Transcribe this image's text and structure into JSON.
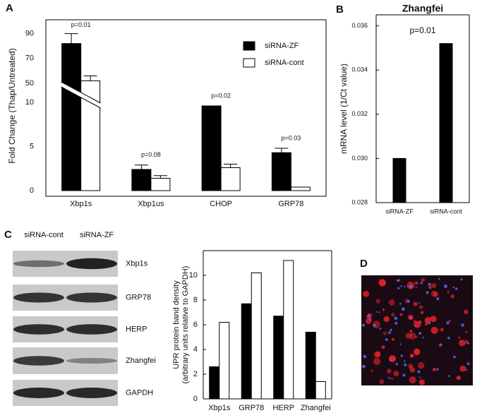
{
  "panel_labels": [
    "A",
    "B",
    "C",
    "D"
  ],
  "blot": {
    "lanes": [
      "siRNA-cont",
      "siRNA-ZF"
    ],
    "bands": [
      "Xbp1s",
      "GRP78",
      "HERP",
      "Zhangfei",
      "GAPDH"
    ]
  },
  "chart_data": [
    {
      "type": "bar",
      "ylabel": "Fold Change (Thap/Untreated)",
      "categories": [
        "Xbp1s",
        "Xbp1us",
        "CHOP",
        "GRP78"
      ],
      "series": [
        {
          "name": "siRNA-ZF",
          "color": "#000000",
          "values": [
            82,
            2.4,
            9.6,
            4.3
          ],
          "errors": [
            8,
            0.5,
            0.6,
            0.5
          ]
        },
        {
          "name": "siRNA-cont",
          "color": "#ffffff",
          "values": [
            52,
            1.4,
            2.6,
            0.4
          ],
          "errors": [
            4,
            0.3,
            0.4,
            0
          ]
        }
      ],
      "annotations": [
        "p=0.01",
        "p=0.08",
        "p=0.02",
        "p=0.03"
      ],
      "ylim": [
        0,
        100
      ],
      "axis_break": [
        10,
        50
      ],
      "yticks": [
        0,
        5,
        10,
        50,
        70,
        90
      ],
      "legend": "top-right"
    },
    {
      "type": "bar",
      "title": "Zhangfei",
      "ylabel": "mRNA level (1/Ct value)",
      "categories": [
        "siRNA-ZF",
        "siRNA-cont"
      ],
      "series": [
        {
          "color": "#000000",
          "values": [
            0.03,
            0.0352
          ]
        }
      ],
      "annotations": [
        "p=0.01"
      ],
      "ylim": [
        0.028,
        0.0365
      ],
      "yticks": [
        0.028,
        {
          "value": 0.03,
          "label": "0.030"
        },
        0.032,
        0.034,
        0.036
      ]
    },
    {
      "type": "bar",
      "ylabel": [
        "UPR protein band density",
        "(arbitrary units relative to GAPDH)"
      ],
      "categories": [
        "Xbp1s",
        "GRP78",
        "HERP",
        "Zhangfei"
      ],
      "series": [
        {
          "color": "#000000",
          "values": [
            2.6,
            7.7,
            6.7,
            5.4
          ]
        },
        {
          "color": "#ffffff",
          "values": [
            6.2,
            10.2,
            11.2,
            1.4
          ]
        }
      ],
      "ylim": [
        0,
        12
      ],
      "yticks": [
        0,
        2,
        4,
        6,
        8,
        10
      ]
    }
  ]
}
